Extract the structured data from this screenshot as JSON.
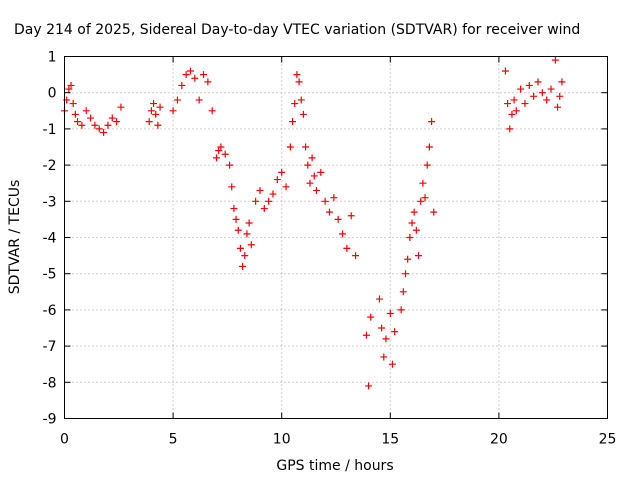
{
  "chart_data": {
    "type": "scatter",
    "title": "Day 214 of 2025, Sidereal Day-to-day VTEC variation (SDTVAR) for receiver wind",
    "xlabel": "GPS time / hours",
    "ylabel": "SDTVAR / TECUs",
    "xlim": [
      0,
      25
    ],
    "ylim": [
      -9,
      1
    ],
    "xticks": [
      0,
      5,
      10,
      15,
      20,
      25
    ],
    "yticks": [
      -9,
      -8,
      -7,
      -6,
      -5,
      -4,
      -3,
      -2,
      -1,
      0,
      1
    ],
    "xtick_labels": [
      "0",
      "5",
      "10",
      "15",
      "20",
      "25"
    ],
    "ytick_labels": [
      "-9",
      "-8",
      "-7",
      "-6",
      "-5",
      "-4",
      "-3",
      "-2",
      "-1",
      "0",
      "1"
    ],
    "grid": true,
    "marker": "+",
    "color": "#ff0000",
    "series": [
      {
        "name": "SDTVAR",
        "x": [
          0.0,
          0.1,
          0.2,
          0.3,
          0.4,
          0.5,
          0.6,
          0.8,
          1.0,
          1.2,
          1.4,
          1.6,
          1.8,
          2.0,
          2.2,
          2.4,
          2.6,
          3.9,
          4.0,
          4.1,
          4.2,
          4.3,
          4.4,
          5.0,
          5.2,
          5.4,
          5.6,
          5.8,
          6.0,
          6.2,
          6.4,
          6.6,
          6.8,
          7.0,
          7.1,
          7.2,
          7.4,
          7.6,
          7.7,
          7.8,
          7.9,
          8.0,
          8.1,
          8.2,
          8.3,
          8.4,
          8.5,
          8.6,
          8.8,
          9.0,
          9.2,
          9.4,
          9.6,
          9.8,
          10.0,
          10.2,
          10.4,
          10.5,
          10.6,
          10.7,
          10.8,
          10.9,
          11.0,
          11.1,
          11.2,
          11.3,
          11.4,
          11.5,
          11.6,
          11.8,
          12.0,
          12.2,
          12.4,
          12.6,
          12.8,
          13.0,
          13.2,
          13.4,
          13.9,
          14.0,
          14.1,
          14.5,
          14.6,
          14.7,
          14.8,
          15.0,
          15.1,
          15.2,
          15.5,
          15.6,
          15.7,
          15.8,
          15.9,
          16.0,
          16.1,
          16.2,
          16.3,
          16.4,
          16.5,
          16.6,
          16.7,
          16.8,
          16.9,
          17.0,
          20.3,
          20.4,
          20.5,
          20.6,
          20.7,
          20.8,
          21.0,
          21.2,
          21.4,
          21.6,
          21.8,
          22.0,
          22.2,
          22.4,
          22.6,
          22.7,
          22.8,
          22.9
        ],
        "y": [
          -0.5,
          -0.2,
          0.1,
          0.2,
          -0.3,
          -0.6,
          -0.8,
          -0.9,
          -0.5,
          -0.7,
          -0.9,
          -1.0,
          -1.1,
          -0.9,
          -0.7,
          -0.8,
          -0.4,
          -0.8,
          -0.5,
          -0.3,
          -0.6,
          -0.9,
          -0.4,
          -0.5,
          -0.2,
          0.2,
          0.5,
          0.6,
          0.4,
          -0.2,
          0.5,
          0.3,
          -0.5,
          -1.8,
          -1.6,
          -1.5,
          -1.7,
          -2.0,
          -2.6,
          -3.2,
          -3.5,
          -3.8,
          -4.3,
          -4.8,
          -4.5,
          -3.9,
          -3.6,
          -4.2,
          -3.0,
          -2.7,
          -3.2,
          -3.0,
          -2.8,
          -2.4,
          -2.2,
          -2.6,
          -1.5,
          -0.8,
          -0.3,
          0.5,
          0.3,
          -0.2,
          -0.6,
          -1.5,
          -2.0,
          -2.5,
          -1.8,
          -2.3,
          -2.7,
          -2.2,
          -3.0,
          -3.3,
          -2.9,
          -3.5,
          -3.9,
          -4.3,
          -3.4,
          -4.5,
          -6.7,
          -8.1,
          -6.2,
          -5.7,
          -6.5,
          -7.3,
          -6.8,
          -6.1,
          -7.5,
          -6.6,
          -6.0,
          -5.5,
          -5.0,
          -4.6,
          -4.0,
          -3.6,
          -3.3,
          -3.8,
          -4.5,
          -3.0,
          -2.5,
          -2.9,
          -2.0,
          -1.5,
          -0.8,
          -3.3,
          0.6,
          -0.3,
          -1.0,
          -0.6,
          -0.2,
          -0.5,
          0.1,
          -0.3,
          0.2,
          -0.1,
          0.3,
          0.0,
          -0.2,
          0.1,
          0.9,
          -0.4,
          -0.1,
          0.3
        ]
      }
    ]
  }
}
